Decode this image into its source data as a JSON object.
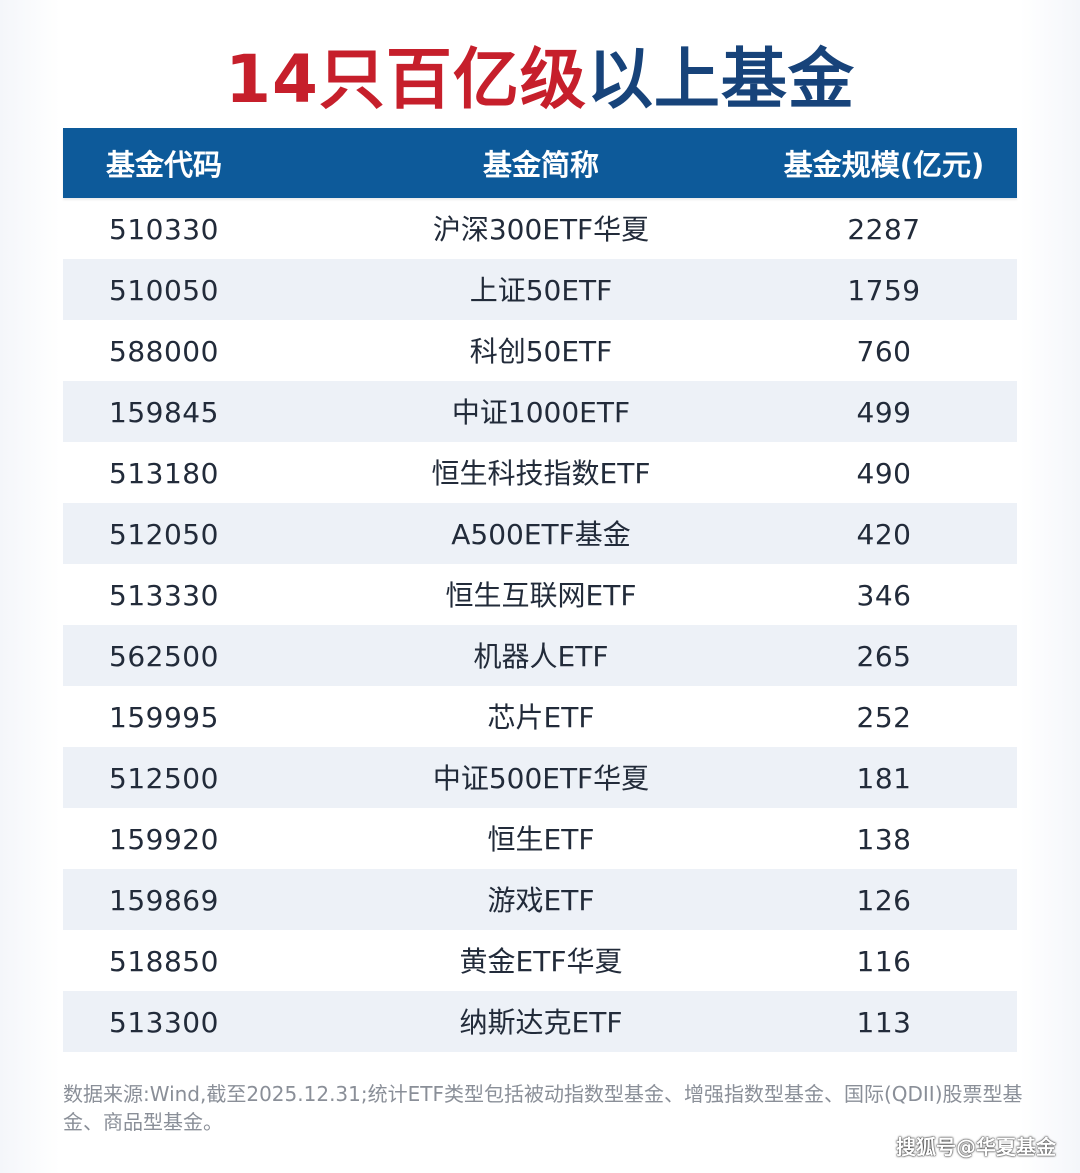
{
  "title": {
    "red": "14只百亿级",
    "blue": "以上基金"
  },
  "colors": {
    "title_red": "#c61f2b",
    "title_blue": "#17437a",
    "header_bg": "#0d5a9a",
    "alt_row_bg": "#edf1f7"
  },
  "table": {
    "headers": {
      "code": "基金代码",
      "name": "基金简称",
      "size": "基金规模(亿元)"
    },
    "rows": [
      {
        "code": "510330",
        "name": "沪深300ETF华夏",
        "size": "2287"
      },
      {
        "code": "510050",
        "name": "上证50ETF",
        "size": "1759"
      },
      {
        "code": "588000",
        "name": "科创50ETF",
        "size": "760"
      },
      {
        "code": "159845",
        "name": "中证1000ETF",
        "size": "499"
      },
      {
        "code": "513180",
        "name": "恒生科技指数ETF",
        "size": "490"
      },
      {
        "code": "512050",
        "name": "A500ETF基金",
        "size": "420"
      },
      {
        "code": "513330",
        "name": "恒生互联网ETF",
        "size": "346"
      },
      {
        "code": "562500",
        "name": "机器人ETF",
        "size": "265"
      },
      {
        "code": "159995",
        "name": "芯片ETF",
        "size": "252"
      },
      {
        "code": "512500",
        "name": "中证500ETF华夏",
        "size": "181"
      },
      {
        "code": "159920",
        "name": "恒生ETF",
        "size": "138"
      },
      {
        "code": "159869",
        "name": "游戏ETF",
        "size": "126"
      },
      {
        "code": "518850",
        "name": "黄金ETF华夏",
        "size": "116"
      },
      {
        "code": "513300",
        "name": "纳斯达克ETF",
        "size": "113"
      }
    ]
  },
  "footnote": "数据来源:Wind,截至2025.12.31;统计ETF类型包括被动指数型基金、增强指数型基金、国际(QDII)股票型基金、商品型基金。",
  "watermark": "搜狐号@华夏基金"
}
